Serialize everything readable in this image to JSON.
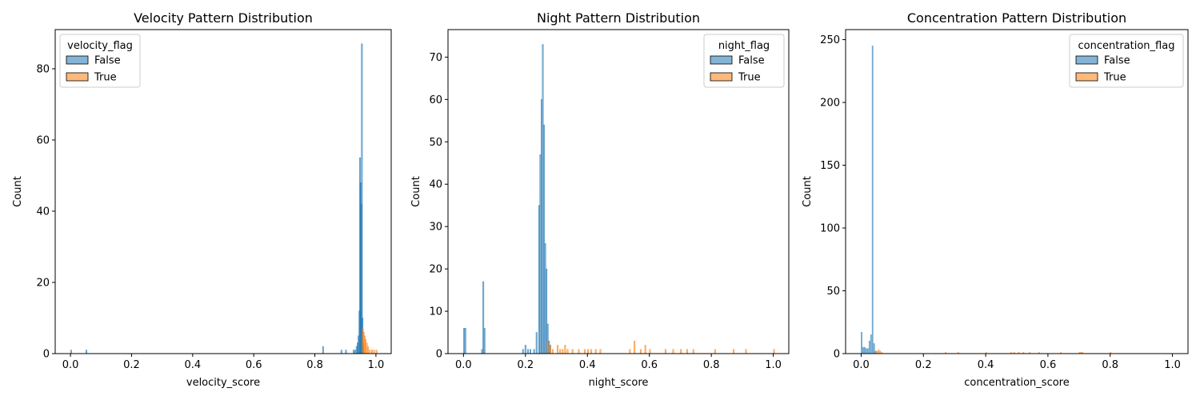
{
  "colors": {
    "false": "#1f77b4",
    "true": "#ff7f0e"
  },
  "chart_data": [
    {
      "type": "bar",
      "title": "Velocity Pattern Distribution",
      "xlabel": "velocity_score",
      "ylabel": "Count",
      "xlim": [
        -0.05,
        1.05
      ],
      "ylim": [
        0,
        91
      ],
      "xticks": [
        0.0,
        0.2,
        0.4,
        0.6,
        0.8,
        1.0
      ],
      "xtick_labels": [
        "0.0",
        "0.2",
        "0.4",
        "0.6",
        "0.8",
        "1.0"
      ],
      "yticks": [
        0,
        20,
        40,
        60,
        80
      ],
      "ytick_labels": [
        "0",
        "20",
        "40",
        "60",
        "80"
      ],
      "bin_width": 0.004,
      "legend": {
        "title": "velocity_flag",
        "placement": "top-left",
        "entries": [
          "False",
          "True"
        ]
      },
      "series": [
        {
          "name": "False",
          "x": [
            0.0,
            0.05,
            0.825,
            0.885,
            0.9,
            0.925,
            0.93,
            0.935,
            0.938,
            0.941,
            0.944,
            0.946,
            0.948,
            0.95,
            0.952,
            0.954,
            0.956
          ],
          "y": [
            1,
            1,
            2,
            1,
            1,
            1,
            1,
            2,
            3,
            5,
            12,
            55,
            48,
            42,
            87,
            10,
            3
          ]
        },
        {
          "name": "True",
          "x": [
            0.955,
            0.958,
            0.961,
            0.964,
            0.968,
            0.972,
            0.978,
            0.985,
            0.992,
            1.0
          ],
          "y": [
            7,
            6,
            5,
            4,
            3,
            2,
            1,
            1,
            1,
            1
          ]
        }
      ]
    },
    {
      "type": "bar",
      "title": "Night Pattern Distribution",
      "xlabel": "night_score",
      "ylabel": "Count",
      "xlim": [
        -0.05,
        1.05
      ],
      "ylim": [
        0,
        76.5
      ],
      "xticks": [
        0.0,
        0.2,
        0.4,
        0.6,
        0.8,
        1.0
      ],
      "xtick_labels": [
        "0.0",
        "0.2",
        "0.4",
        "0.6",
        "0.8",
        "1.0"
      ],
      "yticks": [
        0,
        10,
        20,
        30,
        40,
        50,
        60,
        70
      ],
      "ytick_labels": [
        "0",
        "10",
        "20",
        "30",
        "40",
        "50",
        "60",
        "70"
      ],
      "bin_width": 0.004,
      "legend": {
        "title": "night_flag",
        "placement": "top-right",
        "entries": [
          "False",
          "True"
        ]
      },
      "series": [
        {
          "name": "False",
          "x": [
            0.0,
            0.004,
            0.058,
            0.062,
            0.066,
            0.19,
            0.198,
            0.206,
            0.214,
            0.226,
            0.234,
            0.242,
            0.246,
            0.25,
            0.254,
            0.258,
            0.262,
            0.266,
            0.27,
            0.274,
            0.278
          ],
          "y": [
            6,
            6,
            1,
            17,
            6,
            1,
            2,
            1,
            1,
            1,
            5,
            35,
            47,
            60,
            73,
            54,
            26,
            20,
            7,
            3,
            2
          ]
        },
        {
          "name": "True",
          "x": [
            0.27,
            0.278,
            0.286,
            0.302,
            0.31,
            0.318,
            0.326,
            0.334,
            0.35,
            0.37,
            0.39,
            0.4,
            0.41,
            0.425,
            0.44,
            0.535,
            0.55,
            0.57,
            0.585,
            0.6,
            0.65,
            0.675,
            0.7,
            0.72,
            0.74,
            0.81,
            0.87,
            0.91,
            1.0
          ],
          "y": [
            3,
            2,
            1,
            2,
            1,
            1,
            2,
            1,
            1,
            1,
            1,
            1,
            1,
            1,
            1,
            1,
            3,
            1,
            2,
            1,
            1,
            1,
            1,
            1,
            1,
            1,
            1,
            1,
            1
          ]
        }
      ]
    },
    {
      "type": "bar",
      "title": "Concentration Pattern Distribution",
      "xlabel": "concentration_score",
      "ylabel": "Count",
      "xlim": [
        -0.05,
        1.05
      ],
      "ylim": [
        0,
        258
      ],
      "xticks": [
        0.0,
        0.2,
        0.4,
        0.6,
        0.8,
        1.0
      ],
      "xtick_labels": [
        "0.0",
        "0.2",
        "0.4",
        "0.6",
        "0.8",
        "1.0"
      ],
      "yticks": [
        0,
        50,
        100,
        150,
        200,
        250
      ],
      "ytick_labels": [
        "0",
        "50",
        "100",
        "150",
        "200",
        "250"
      ],
      "bin_width": 0.003,
      "legend": {
        "title": "concentration_flag",
        "placement": "top-right",
        "entries": [
          "False",
          "True"
        ]
      },
      "series": [
        {
          "name": "False",
          "x": [
            0.0,
            0.005,
            0.01,
            0.015,
            0.02,
            0.025,
            0.03,
            0.035,
            0.04,
            0.045
          ],
          "y": [
            17,
            5,
            5,
            4,
            4,
            10,
            15,
            245,
            8,
            2
          ]
        },
        {
          "name": "True",
          "x": [
            0.05,
            0.055,
            0.06,
            0.065,
            0.27,
            0.31,
            0.4,
            0.48,
            0.49,
            0.505,
            0.52,
            0.54,
            0.57,
            0.64,
            0.7,
            0.705,
            0.71,
            0.8
          ],
          "y": [
            2,
            3,
            2,
            1,
            1,
            1,
            1,
            1,
            1,
            1,
            1,
            1,
            1,
            1,
            1,
            1,
            1,
            1
          ]
        }
      ]
    }
  ]
}
